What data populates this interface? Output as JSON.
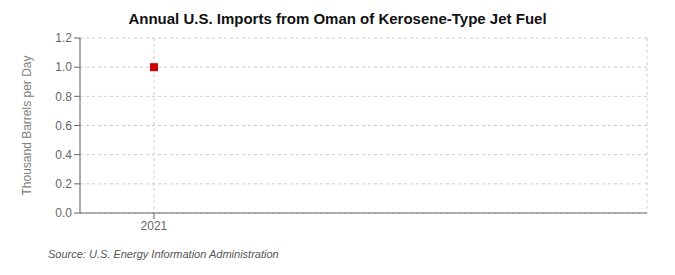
{
  "chart_data": {
    "type": "scatter",
    "title": "Annual U.S. Imports from Oman of Kerosene-Type Jet Fuel",
    "y_label": "Thousand Barrels per Day",
    "source": "Source: U.S. Energy Information Administration",
    "x": [
      2021
    ],
    "values": [
      1.0
    ],
    "color": "#cc0000",
    "marker": "square",
    "xlim": [
      2020.7,
      2023.0
    ],
    "xticks": [
      2021
    ],
    "ylim": [
      0.0,
      1.2
    ],
    "yticks": [
      {
        "value": 0.0,
        "label": "0.0"
      },
      0.2,
      0.4,
      0.6,
      0.8,
      {
        "value": 1.0,
        "label": "1.0"
      },
      1.2
    ],
    "grid": true
  }
}
